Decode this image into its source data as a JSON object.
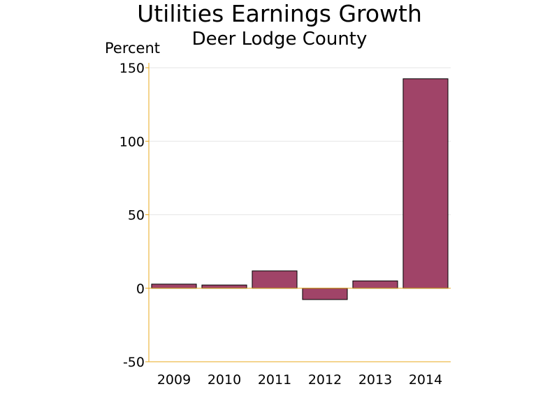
{
  "chart_data": {
    "type": "bar",
    "title": "Utilities Earnings Growth",
    "subtitle": "Deer Lodge County",
    "ylabel": "Percent",
    "xlabel": "",
    "categories": [
      "2009",
      "2010",
      "2011",
      "2012",
      "2013",
      "2014"
    ],
    "values": [
      2.8,
      2.2,
      11.8,
      -7.7,
      5.0,
      142.5
    ],
    "ylim": [
      -50,
      150
    ],
    "yticks": [
      "150",
      "100",
      "50",
      "0",
      "-50"
    ],
    "grid": true,
    "legend": "none",
    "colors": {
      "bar": "#A04468",
      "bar_outline": "#000000",
      "axis": "#E8A81C",
      "grid": "#E6E6E6"
    }
  }
}
